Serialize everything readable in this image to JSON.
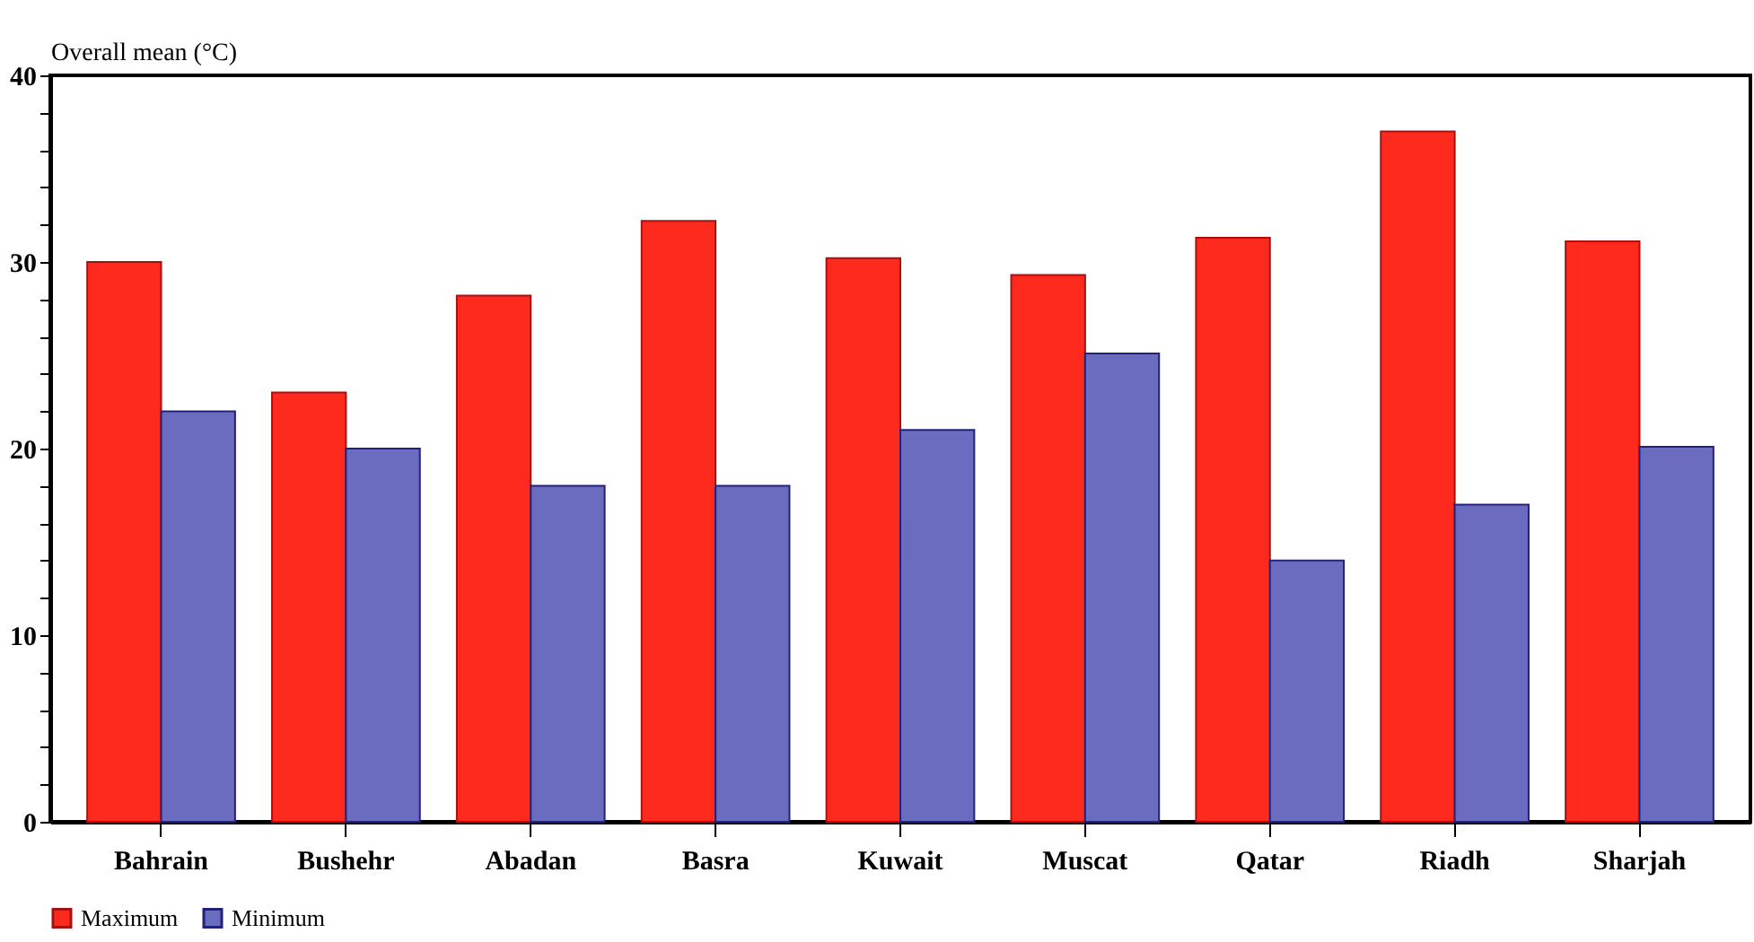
{
  "chart_data": {
    "type": "bar",
    "ylabel": "Overall mean (°C)",
    "categories": [
      "Bahrain",
      "Bushehr",
      "Abadan",
      "Basra",
      "Kuwait",
      "Muscat",
      "Qatar",
      "Riadh",
      "Sharjah"
    ],
    "series": [
      {
        "name": "Maximum",
        "color": "#ff2a1e",
        "values": [
          30,
          23,
          28.2,
          32.2,
          30.2,
          29.3,
          31.3,
          37,
          31.1
        ]
      },
      {
        "name": "Minimum",
        "color": "#6b6bbf",
        "values": [
          22,
          20,
          18,
          18,
          21,
          25.1,
          14,
          17,
          20.1
        ]
      }
    ],
    "ylim": [
      0,
      40
    ],
    "yticks": [
      0,
      {
        "value": 2,
        "label": null
      },
      {
        "value": 4,
        "label": null
      },
      {
        "value": 6,
        "label": null
      },
      {
        "value": 8,
        "label": null
      },
      10,
      {
        "value": 12,
        "label": null
      },
      {
        "value": 14,
        "label": null
      },
      {
        "value": 16,
        "label": null
      },
      {
        "value": 18,
        "label": null
      },
      20,
      {
        "value": 22,
        "label": null
      },
      {
        "value": 24,
        "label": null
      },
      {
        "value": 26,
        "label": null
      },
      {
        "value": 28,
        "label": null
      },
      30,
      {
        "value": 32,
        "label": null
      },
      {
        "value": 34,
        "label": null
      },
      {
        "value": 36,
        "label": null
      },
      {
        "value": 38,
        "label": null
      },
      40
    ],
    "grid": false,
    "legend": "bottom"
  }
}
